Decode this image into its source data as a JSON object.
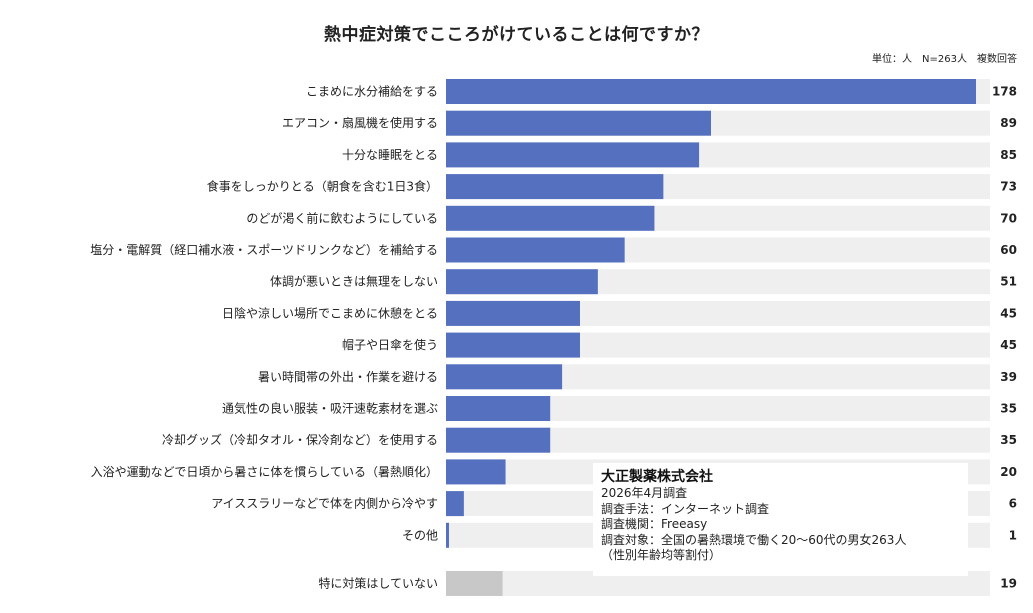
{
  "title": "熱中症対策でこころがけていることは何ですか？",
  "unit_note": "単位：人　N=263人　複数回答",
  "colors": {
    "bar": "#5470BE",
    "bar_other": "#C8C8C8",
    "track": "#EFEFEF"
  },
  "chart_data": {
    "type": "bar",
    "orientation": "horizontal",
    "max_value": 178,
    "grid": false,
    "categories": [
      "こまめに水分補給をする",
      "エアコン・扇風機を使用する",
      "十分な睡眠をとる",
      "食事をしっかりとる（朝食を含む1日3食）",
      "のどが渇く前に飲むようにしている",
      "塩分・電解質（経口補水液・スポーツドリンクなど）を補給する",
      "体調が悪いときは無理をしない",
      "日陰や涼しい場所でこまめに休憩をとる",
      "帽子や日傘を使う",
      "暑い時間帯の外出・作業を避ける",
      "通気性の良い服装・吸汗速乾素材を選ぶ",
      "冷却グッズ（冷却タオル・保冷剤など）を使用する",
      "入浴や運動などで日頃から暑さに体を慣らしている（暑熱順化）",
      "アイススラリーなどで体を内側から冷やす",
      "その他"
    ],
    "values": [
      178,
      89,
      85,
      73,
      70,
      60,
      51,
      45,
      45,
      39,
      35,
      35,
      20,
      6,
      1
    ],
    "separate": {
      "category": "特に対策はしていない",
      "value": 19
    }
  },
  "info_box": {
    "company": "大正製薬株式会社",
    "lines": [
      "2026年4月調査",
      "調査手法：インターネット調査",
      "調査機関：Freeasy",
      "調査対象：全国の暑熱環境で働く20～60代の男女263人",
      "（性別年齢均等割付）"
    ]
  }
}
